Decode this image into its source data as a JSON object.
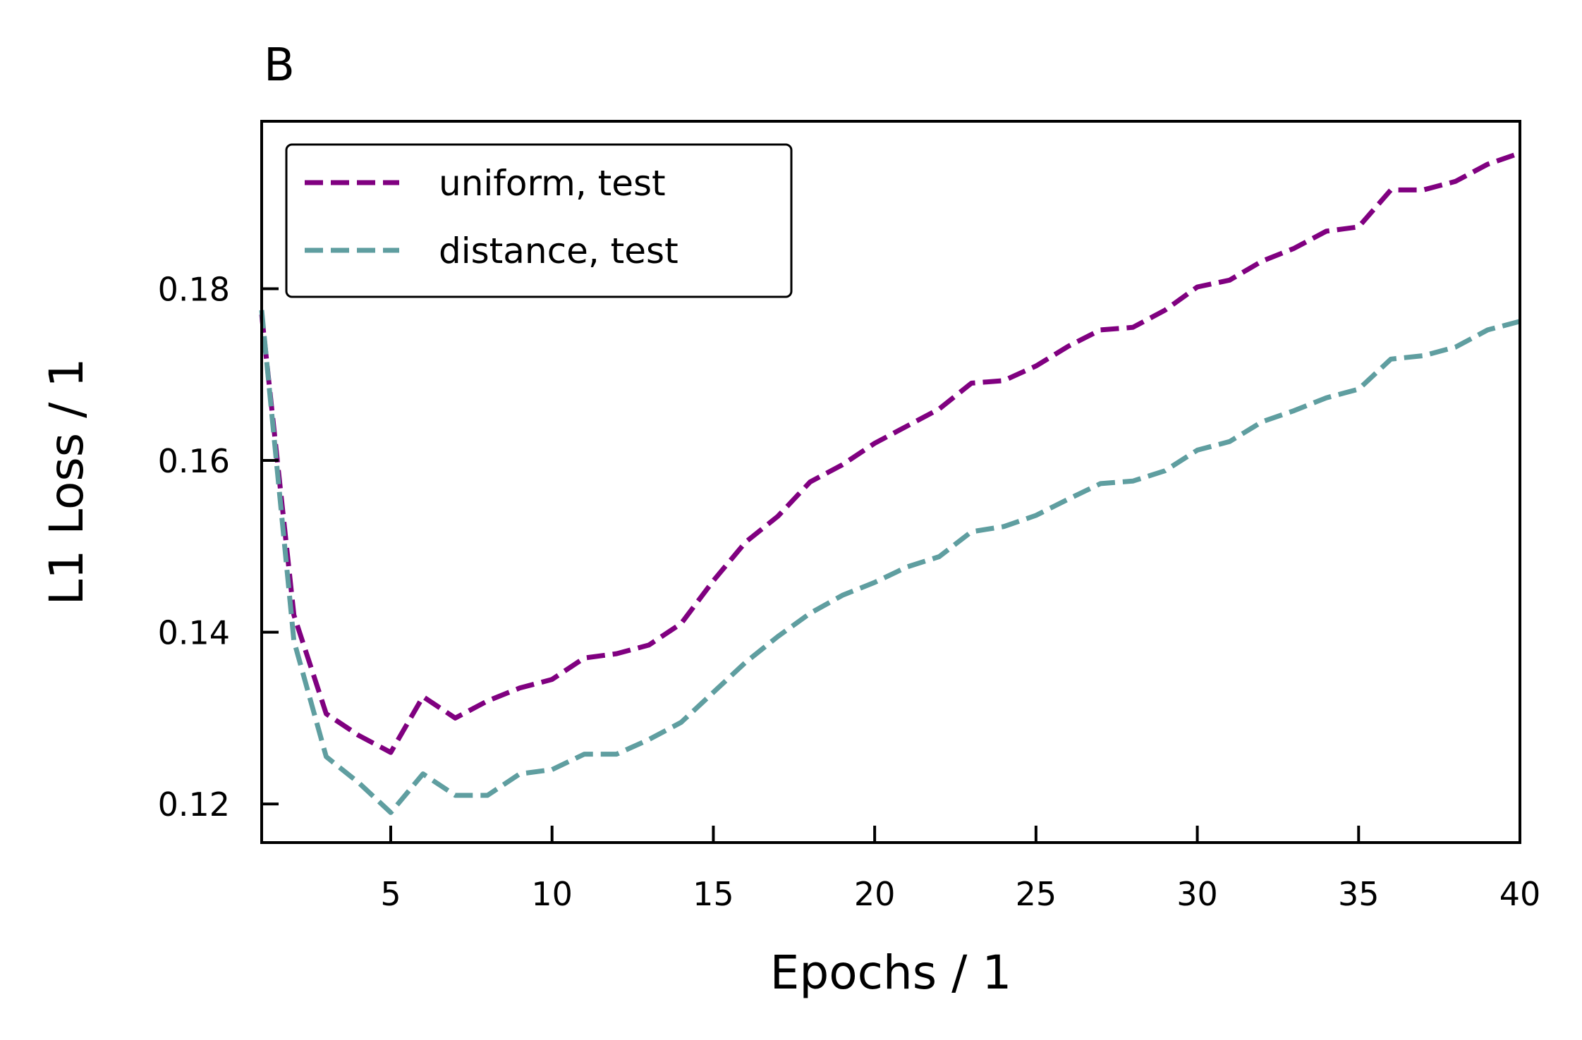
{
  "chart_data": {
    "type": "line",
    "panel_label": "B",
    "xlabel": "Epochs / 1",
    "ylabel": "L1 Loss / 1",
    "xlim": [
      1,
      40
    ],
    "ylim": [
      0.1155,
      0.1995
    ],
    "xticks": [
      5,
      10,
      15,
      20,
      25,
      30,
      35,
      40
    ],
    "yticks": [
      0.12,
      0.14,
      0.16,
      0.18
    ],
    "xtick_labels": [
      "5",
      "10",
      "15",
      "20",
      "25",
      "30",
      "35",
      "40"
    ],
    "ytick_labels": [
      "0.12",
      "0.14",
      "0.16",
      "0.18"
    ],
    "grid": false,
    "legend_position": "top-left",
    "x": [
      1,
      2,
      3,
      4,
      5,
      6,
      7,
      8,
      9,
      10,
      11,
      12,
      13,
      14,
      15,
      16,
      17,
      18,
      19,
      20,
      21,
      22,
      23,
      24,
      25,
      26,
      27,
      28,
      29,
      30,
      31,
      32,
      33,
      34,
      35,
      36,
      37,
      38,
      39,
      40
    ],
    "series": [
      {
        "name": "uniform, test",
        "color": "#800080",
        "values": [
          0.177,
          0.142,
          0.1305,
          0.128,
          0.126,
          0.1325,
          0.13,
          0.132,
          0.1335,
          0.1345,
          0.137,
          0.1375,
          0.1385,
          0.141,
          0.146,
          0.1505,
          0.1535,
          0.1575,
          0.1595,
          0.162,
          0.164,
          0.166,
          0.169,
          0.1693,
          0.171,
          0.1733,
          0.1752,
          0.1755,
          0.1775,
          0.1802,
          0.181,
          0.1832,
          0.1847,
          0.1867,
          0.1872,
          0.1915,
          0.1915,
          0.1925,
          0.1945,
          0.1958
        ]
      },
      {
        "name": "distance, test",
        "color": "#5f9ea0",
        "values": [
          0.1775,
          0.139,
          0.1255,
          0.1225,
          0.119,
          0.1235,
          0.121,
          0.121,
          0.1235,
          0.124,
          0.1258,
          0.1258,
          0.1275,
          0.1295,
          0.133,
          0.1365,
          0.1395,
          0.1422,
          0.1443,
          0.1458,
          0.1476,
          0.1488,
          0.1517,
          0.1523,
          0.1536,
          0.1555,
          0.1573,
          0.1576,
          0.1588,
          0.1612,
          0.1622,
          0.1645,
          0.1658,
          0.1673,
          0.1683,
          0.1718,
          0.1722,
          0.1732,
          0.1752,
          0.1762
        ]
      }
    ]
  }
}
